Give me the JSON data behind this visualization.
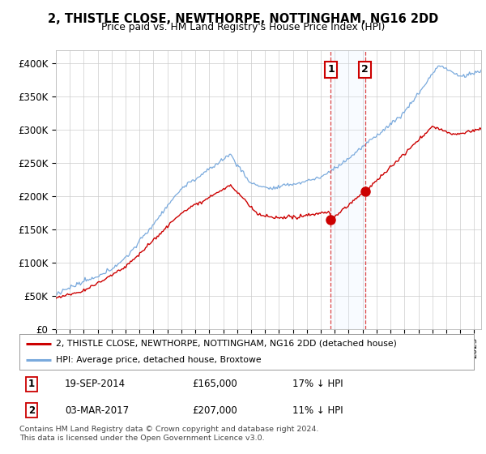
{
  "title": "2, THISTLE CLOSE, NEWTHORPE, NOTTINGHAM, NG16 2DD",
  "subtitle": "Price paid vs. HM Land Registry's House Price Index (HPI)",
  "ylabel_ticks": [
    "£0",
    "£50K",
    "£100K",
    "£150K",
    "£200K",
    "£250K",
    "£300K",
    "£350K",
    "£400K"
  ],
  "ytick_values": [
    0,
    50000,
    100000,
    150000,
    200000,
    250000,
    300000,
    350000,
    400000
  ],
  "ylim": [
    0,
    420000
  ],
  "x_start_year": 1995.0,
  "x_end_year": 2025.5,
  "hpi_color": "#7aaadd",
  "price_color": "#cc0000",
  "transaction1": {
    "date": "19-SEP-2014",
    "price": 165000,
    "label": "1",
    "year": 2014.72
  },
  "transaction2": {
    "date": "03-MAR-2017",
    "price": 207000,
    "label": "2",
    "year": 2017.17
  },
  "legend_house_label": "2, THISTLE CLOSE, NEWTHORPE, NOTTINGHAM, NG16 2DD (detached house)",
  "legend_hpi_label": "HPI: Average price, detached house, Broxtowe",
  "footnote": "Contains HM Land Registry data © Crown copyright and database right 2024.\nThis data is licensed under the Open Government Licence v3.0.",
  "table_row1": [
    "1",
    "19-SEP-2014",
    "£165,000",
    "17% ↓ HPI"
  ],
  "table_row2": [
    "2",
    "03-MAR-2017",
    "£207,000",
    "11% ↓ HPI"
  ],
  "background_color": "#ffffff",
  "plot_bg_color": "#ffffff",
  "grid_color": "#cccccc",
  "span_color": "#ddeeff",
  "vline_color": "#dd4444"
}
